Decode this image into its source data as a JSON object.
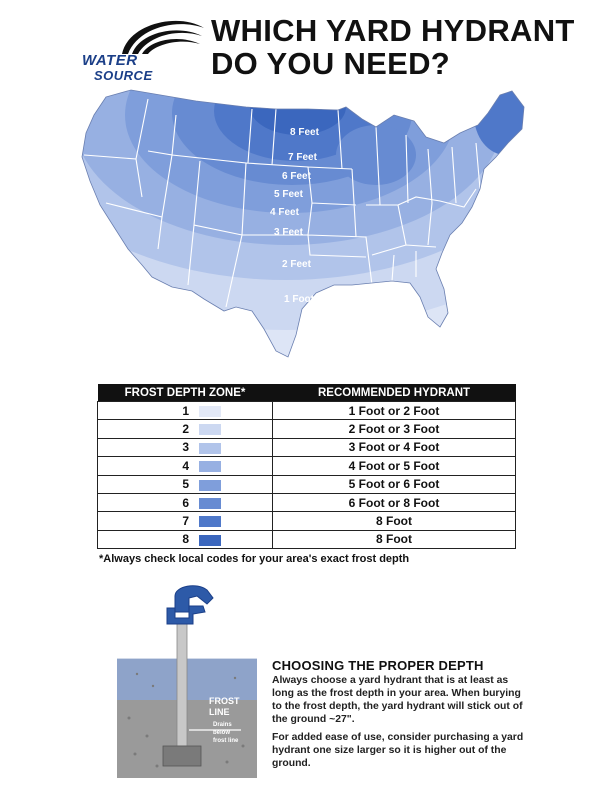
{
  "logo": {
    "line1": "WATER",
    "line2": "SOURCE"
  },
  "title": {
    "line1": "WHICH YARD HYDRANT",
    "line2": "DO YOU NEED?"
  },
  "map": {
    "zone_labels": [
      "8 Feet",
      "7 Feet",
      "6 Feet",
      "5 Feet",
      "4 Feet",
      "3 Feet",
      "2 Feet",
      "1 Foot"
    ]
  },
  "table": {
    "headers": [
      "FROST DEPTH ZONE*",
      "RECOMMENDED HYDRANT"
    ],
    "rows": [
      {
        "zone": "1",
        "color": "#e3e9f7",
        "hydrant": "1 Foot or 2 Foot"
      },
      {
        "zone": "2",
        "color": "#ccd8f1",
        "hydrant": "2 Foot or 3 Foot"
      },
      {
        "zone": "3",
        "color": "#b1c4ea",
        "hydrant": "3 Foot or 4 Foot"
      },
      {
        "zone": "4",
        "color": "#97b0e2",
        "hydrant": "4 Foot or 5 Foot"
      },
      {
        "zone": "5",
        "color": "#7f9edb",
        "hydrant": "5 Foot or 6 Foot"
      },
      {
        "zone": "6",
        "color": "#678bd2",
        "hydrant": "6 Foot or 8 Foot"
      },
      {
        "zone": "7",
        "color": "#4f78c9",
        "hydrant": "8 Foot"
      },
      {
        "zone": "8",
        "color": "#3b67be",
        "hydrant": "8 Foot"
      }
    ]
  },
  "note": "*Always check local codes for your area's exact frost depth",
  "illustration": {
    "frost_label_1": "FROST",
    "frost_label_2": "LINE",
    "drains_1": "Drains",
    "drains_2": "below",
    "drains_3": "frost line"
  },
  "section": {
    "title": "CHOOSING THE PROPER DEPTH",
    "p1": "Always choose a yard hydrant that is at least as long as the frost depth in your area.  When burying to the frost depth, the yard hydrant will stick out of the ground ~27\".",
    "p2": "For added ease of use, consider purchasing a yard hydrant one size larger so it is higher out of the ground."
  }
}
